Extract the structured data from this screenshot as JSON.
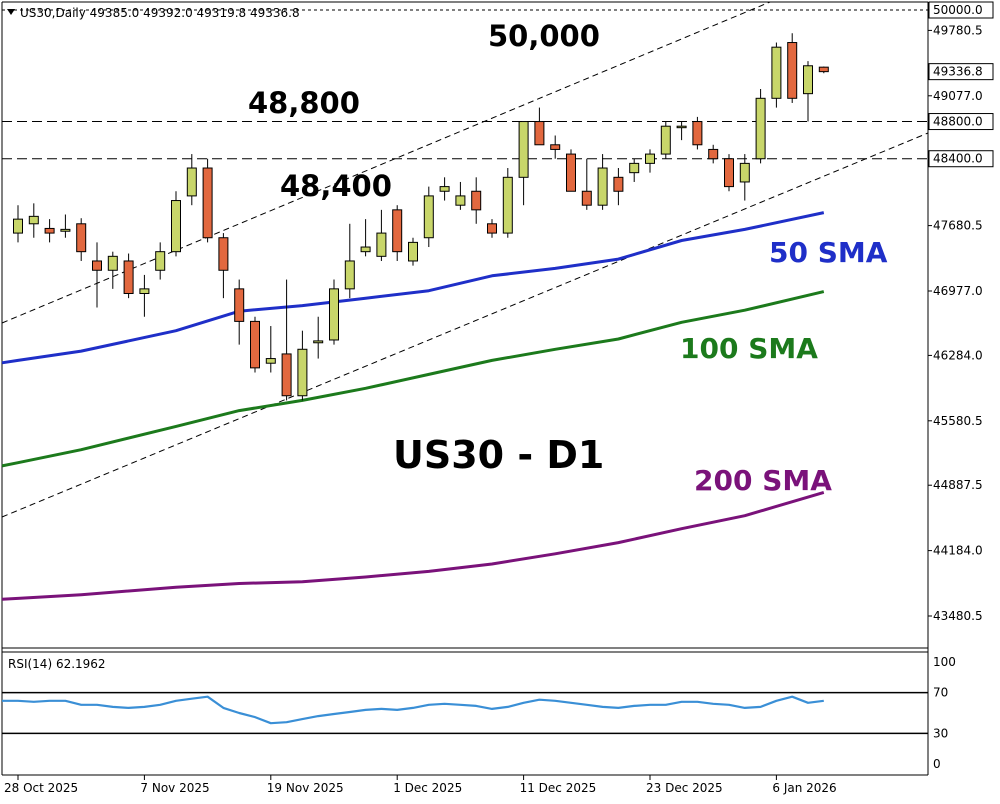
{
  "header": {
    "symbol_info": "US30,Daily  49385.0 49392.0 49319.8 49336.8"
  },
  "rsi_panel": {
    "label": "RSI(14) 62.1962",
    "scale_labels": [
      "100",
      "70",
      "30",
      "0"
    ]
  },
  "annotations": {
    "level_50000": "50,000",
    "level_48800": "48,800",
    "level_48400": "48,400",
    "title": "US30 - D1",
    "sma50": "50 SMA",
    "sma100": "100 SMA",
    "sma200": "200 SMA"
  },
  "colors": {
    "bull_candle": "#c8d66a",
    "bear_candle": "#e2683f",
    "sma50": "#1f2fc8",
    "sma100": "#1c7a1c",
    "sma200": "#7a127a",
    "rsi_line": "#3a8fd6"
  },
  "chart_data": [
    {
      "type": "candlestick",
      "title": "US30 - D1",
      "x_tick_labels": [
        "28 Oct 2025",
        "7 Nov 2025",
        "19 Nov 2025",
        "1 Dec 2025",
        "11 Dec 2025",
        "23 Dec 2025",
        "6 Jan 2026"
      ],
      "y_tick_labels": [
        "49780.5",
        "49077.0",
        "47680.5",
        "46977.0",
        "46284.0",
        "45580.5",
        "44887.5",
        "44184.0",
        "43480.5"
      ],
      "price_tags": [
        "50000.0",
        "49336.8",
        "48800.0",
        "48400.0"
      ],
      "ylim": [
        43200,
        50050
      ],
      "horizontal_levels": [
        50000,
        48800,
        48400
      ],
      "candles": [
        {
          "o": 47600,
          "h": 47900,
          "l": 47500,
          "c": 47750
        },
        {
          "o": 47700,
          "h": 47920,
          "l": 47550,
          "c": 47780
        },
        {
          "o": 47650,
          "h": 47750,
          "l": 47500,
          "c": 47600
        },
        {
          "o": 47620,
          "h": 47800,
          "l": 47550,
          "c": 47640
        },
        {
          "o": 47700,
          "h": 47760,
          "l": 47300,
          "c": 47400
        },
        {
          "o": 47300,
          "h": 47500,
          "l": 46800,
          "c": 47200
        },
        {
          "o": 47200,
          "h": 47400,
          "l": 47000,
          "c": 47350
        },
        {
          "o": 47300,
          "h": 47380,
          "l": 46900,
          "c": 46950
        },
        {
          "o": 46950,
          "h": 47150,
          "l": 46700,
          "c": 47000
        },
        {
          "o": 47200,
          "h": 47500,
          "l": 47100,
          "c": 47400
        },
        {
          "o": 47400,
          "h": 48050,
          "l": 47350,
          "c": 47950
        },
        {
          "o": 48000,
          "h": 48450,
          "l": 47900,
          "c": 48300
        },
        {
          "o": 48300,
          "h": 48400,
          "l": 47500,
          "c": 47550
        },
        {
          "o": 47550,
          "h": 47600,
          "l": 46900,
          "c": 47200
        },
        {
          "o": 47000,
          "h": 47100,
          "l": 46400,
          "c": 46650
        },
        {
          "o": 46650,
          "h": 46700,
          "l": 46100,
          "c": 46150
        },
        {
          "o": 46200,
          "h": 46600,
          "l": 46100,
          "c": 46250
        },
        {
          "o": 46300,
          "h": 47100,
          "l": 45800,
          "c": 45850
        },
        {
          "o": 45850,
          "h": 46550,
          "l": 45800,
          "c": 46350
        },
        {
          "o": 46420,
          "h": 46700,
          "l": 46250,
          "c": 46440
        },
        {
          "o": 46450,
          "h": 47100,
          "l": 46400,
          "c": 47000
        },
        {
          "o": 47000,
          "h": 47700,
          "l": 46900,
          "c": 47300
        },
        {
          "o": 47400,
          "h": 47750,
          "l": 47350,
          "c": 47450
        },
        {
          "o": 47350,
          "h": 47850,
          "l": 47300,
          "c": 47600
        },
        {
          "o": 47850,
          "h": 47900,
          "l": 47300,
          "c": 47400
        },
        {
          "o": 47300,
          "h": 47550,
          "l": 47250,
          "c": 47500
        },
        {
          "o": 47550,
          "h": 48100,
          "l": 47450,
          "c": 48000
        },
        {
          "o": 48050,
          "h": 48200,
          "l": 47950,
          "c": 48100
        },
        {
          "o": 47900,
          "h": 48150,
          "l": 47850,
          "c": 48000
        },
        {
          "o": 48050,
          "h": 48200,
          "l": 47700,
          "c": 47850
        },
        {
          "o": 47700,
          "h": 47750,
          "l": 47550,
          "c": 47600
        },
        {
          "o": 47600,
          "h": 48300,
          "l": 47550,
          "c": 48200
        },
        {
          "o": 48200,
          "h": 48800,
          "l": 47900,
          "c": 48800
        },
        {
          "o": 48800,
          "h": 48950,
          "l": 48550,
          "c": 48550
        },
        {
          "o": 48550,
          "h": 48650,
          "l": 48400,
          "c": 48500
        },
        {
          "o": 48450,
          "h": 48500,
          "l": 48050,
          "c": 48050
        },
        {
          "o": 48050,
          "h": 48400,
          "l": 47850,
          "c": 47900
        },
        {
          "o": 47900,
          "h": 48450,
          "l": 47850,
          "c": 48300
        },
        {
          "o": 48200,
          "h": 48300,
          "l": 47900,
          "c": 48050
        },
        {
          "o": 48250,
          "h": 48400,
          "l": 48150,
          "c": 48350
        },
        {
          "o": 48350,
          "h": 48500,
          "l": 48250,
          "c": 48450
        },
        {
          "o": 48450,
          "h": 48800,
          "l": 48400,
          "c": 48750
        },
        {
          "o": 48750,
          "h": 48800,
          "l": 48600,
          "c": 48750
        },
        {
          "o": 48800,
          "h": 48850,
          "l": 48500,
          "c": 48550
        },
        {
          "o": 48500,
          "h": 48550,
          "l": 48350,
          "c": 48400
        },
        {
          "o": 48400,
          "h": 48450,
          "l": 48050,
          "c": 48100
        },
        {
          "o": 48150,
          "h": 48450,
          "l": 47950,
          "c": 48350
        },
        {
          "o": 48400,
          "h": 49150,
          "l": 48350,
          "c": 49050
        },
        {
          "o": 49050,
          "h": 49650,
          "l": 48950,
          "c": 49600
        },
        {
          "o": 49650,
          "h": 49750,
          "l": 49000,
          "c": 49050
        },
        {
          "o": 49100,
          "h": 49450,
          "l": 48800,
          "c": 49400
        },
        {
          "o": 49385,
          "h": 49392,
          "l": 49319.8,
          "c": 49336.8
        }
      ],
      "series": [
        {
          "name": "50 SMA",
          "values": [
            [
              0,
              46230
            ],
            [
              4,
              46330
            ],
            [
              10,
              46550
            ],
            [
              14,
              46760
            ],
            [
              18,
              46820
            ],
            [
              22,
              46900
            ],
            [
              26,
              46980
            ],
            [
              30,
              47140
            ],
            [
              34,
              47220
            ],
            [
              38,
              47320
            ],
            [
              42,
              47520
            ],
            [
              46,
              47640
            ],
            [
              51,
              47820
            ]
          ]
        },
        {
          "name": "100 SMA",
          "values": [
            [
              0,
              45130
            ],
            [
              4,
              45270
            ],
            [
              10,
              45520
            ],
            [
              14,
              45690
            ],
            [
              18,
              45800
            ],
            [
              22,
              45930
            ],
            [
              26,
              46080
            ],
            [
              30,
              46230
            ],
            [
              34,
              46350
            ],
            [
              38,
              46460
            ],
            [
              42,
              46640
            ],
            [
              46,
              46770
            ],
            [
              51,
              46970
            ]
          ]
        },
        {
          "name": "200 SMA",
          "values": [
            [
              0,
              43670
            ],
            [
              4,
              43710
            ],
            [
              10,
              43790
            ],
            [
              14,
              43830
            ],
            [
              18,
              43850
            ],
            [
              22,
              43900
            ],
            [
              26,
              43960
            ],
            [
              30,
              44040
            ],
            [
              34,
              44150
            ],
            [
              38,
              44270
            ],
            [
              42,
              44420
            ],
            [
              46,
              44560
            ],
            [
              51,
              44810
            ]
          ]
        }
      ]
    },
    {
      "type": "line",
      "title": "RSI(14) 62.1962",
      "ylim": [
        0,
        100
      ],
      "levels": [
        70,
        30
      ],
      "y_tick_labels": [
        "100",
        "70",
        "30",
        "0"
      ],
      "series": [
        {
          "values": [
            62,
            61,
            62,
            62,
            58,
            58,
            56,
            55,
            56,
            58,
            62,
            64,
            66,
            55,
            50,
            46,
            40,
            41,
            44,
            47,
            49,
            51,
            53,
            54,
            53,
            55,
            58,
            59,
            58,
            57,
            54,
            56,
            60,
            63,
            62,
            60,
            58,
            56,
            55,
            57,
            58,
            58,
            61,
            61,
            59,
            58,
            55,
            56,
            62,
            66,
            60,
            62
          ]
        }
      ]
    }
  ]
}
